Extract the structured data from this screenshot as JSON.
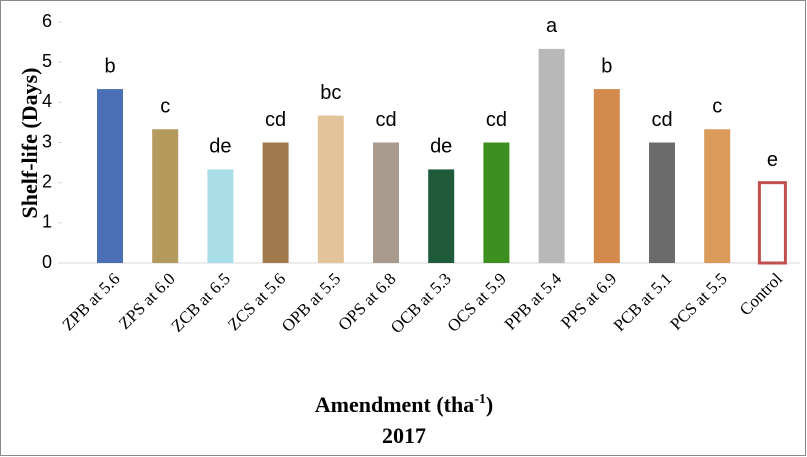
{
  "chart_data": {
    "type": "bar",
    "categories": [
      "ZPB at 5.6",
      "ZPS at 6.0",
      "ZCB at 6.5",
      "ZCS at 5.6",
      "OPB at 5.5",
      "OPS at 6.8",
      "OCB at 5.3",
      "OCS at 5.9",
      "PPB at 5.4",
      "PPS at 6.9",
      "PCB at 5.1",
      "PCS at 5.5",
      "Control"
    ],
    "values": [
      4.33,
      3.33,
      2.33,
      3.0,
      3.67,
      3.0,
      2.33,
      3.0,
      5.33,
      4.33,
      3.0,
      3.33,
      2.0
    ],
    "letters": [
      "b",
      "c",
      "de",
      "cd",
      "bc",
      "cd",
      "de",
      "cd",
      "a",
      "b",
      "cd",
      "c",
      "e"
    ],
    "colors": [
      "#4a6fb5",
      "#b59a5e",
      "#a9dde8",
      "#a07a4c",
      "#e3c49a",
      "#a89a8c",
      "#1f5a3a",
      "#3d8f1f",
      "#b8b8b8",
      "#d48a4c",
      "#6b6b6b",
      "#d99a5a",
      "#ffffff"
    ],
    "outline_color": "#c0504d",
    "ylim": [
      0,
      6
    ],
    "yticks": [
      0,
      1,
      2,
      3,
      4,
      5,
      6
    ],
    "y_label": "Shelf-life (Days)",
    "x_label": "Amendment (tha",
    "x_label_sup": "-1",
    "x_label_end": ")",
    "subtitle": "2017"
  }
}
